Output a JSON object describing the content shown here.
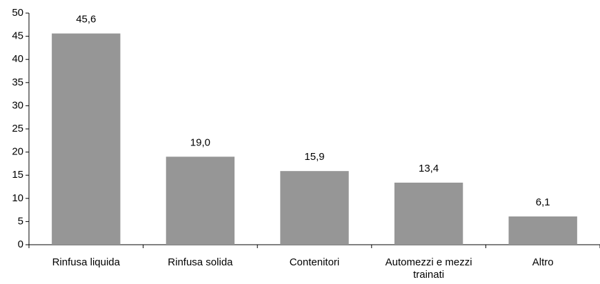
{
  "chart_data": {
    "type": "bar",
    "categories": [
      "Rinfusa liquida",
      "Rinfusa solida",
      "Contenitori",
      "Automezzi e mezzi trainati",
      "Altro"
    ],
    "values": [
      45.6,
      19.0,
      15.9,
      13.4,
      6.1
    ],
    "value_labels": [
      "45,6",
      "19,0",
      "15,9",
      "13,4",
      "6,1"
    ],
    "color": "#969696",
    "ylim": [
      0,
      50
    ],
    "yticks": [
      0,
      5,
      10,
      15,
      20,
      25,
      30,
      35,
      40,
      45,
      50
    ],
    "grid": false
  }
}
